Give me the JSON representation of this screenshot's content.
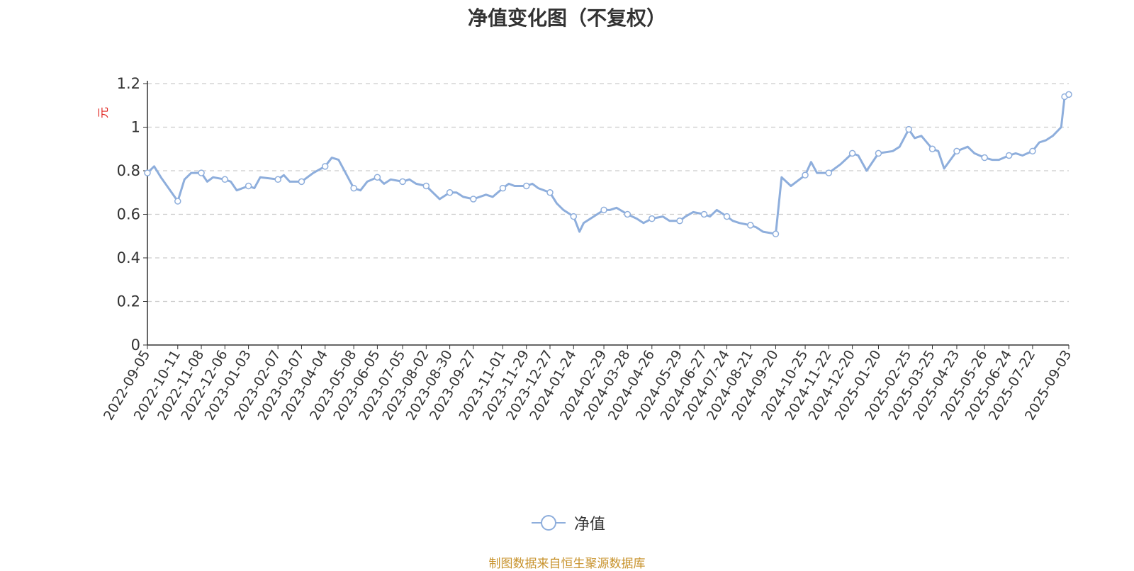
{
  "colors": {
    "series": "#8eaedc",
    "axis": "#333333",
    "grid": "#cccccc",
    "unit": "#e0241f",
    "source": "#c8932d"
  },
  "legend": {
    "label": "净值",
    "icon": "circle-line-icon",
    "position": "bottom-center"
  },
  "source_note": "制图数据来自恒生聚源数据库",
  "chart_data": {
    "type": "line",
    "title": "净值变化图（不复权）",
    "ylabel": "元",
    "xlabel": "",
    "ylim": [
      0,
      1.2
    ],
    "yticks": [
      "0",
      "0.2",
      "0.4",
      "0.6",
      "0.8",
      "1",
      "1.2"
    ],
    "grid": true,
    "x_tick_labels": [
      "2022-09-05",
      "2022-10-11",
      "2022-11-08",
      "2022-12-06",
      "2023-01-03",
      "2023-02-07",
      "2023-03-07",
      "2023-04-04",
      "2023-05-08",
      "2023-06-05",
      "2023-07-05",
      "2023-08-02",
      "2023-08-30",
      "2023-09-27",
      "2023-11-01",
      "2023-11-29",
      "2023-12-27",
      "2024-01-24",
      "2024-02-29",
      "2024-03-28",
      "2024-04-26",
      "2024-05-29",
      "2024-06-27",
      "2024-07-24",
      "2024-08-21",
      "2024-09-20",
      "2024-10-25",
      "2024-11-22",
      "2024-12-20",
      "2025-01-20",
      "2025-02-25",
      "2025-03-25",
      "2025-04-23",
      "2025-05-26",
      "2025-06-24",
      "2025-07-22",
      "2025-09-03"
    ],
    "series": [
      {
        "name": "净值",
        "x": [
          "2022-09-05",
          "2022-09-13",
          "2022-09-21",
          "2022-10-11",
          "2022-10-19",
          "2022-10-27",
          "2022-11-08",
          "2022-11-15",
          "2022-11-22",
          "2022-12-06",
          "2022-12-13",
          "2022-12-20",
          "2023-01-03",
          "2023-01-10",
          "2023-01-17",
          "2023-02-07",
          "2023-02-14",
          "2023-02-21",
          "2023-03-07",
          "2023-03-14",
          "2023-03-21",
          "2023-04-04",
          "2023-04-12",
          "2023-04-20",
          "2023-05-08",
          "2023-05-16",
          "2023-05-24",
          "2023-06-05",
          "2023-06-13",
          "2023-06-21",
          "2023-07-05",
          "2023-07-13",
          "2023-07-21",
          "2023-08-02",
          "2023-08-10",
          "2023-08-18",
          "2023-08-30",
          "2023-09-07",
          "2023-09-15",
          "2023-09-27",
          "2023-10-12",
          "2023-10-20",
          "2023-11-01",
          "2023-11-08",
          "2023-11-15",
          "2023-11-29",
          "2023-12-06",
          "2023-12-13",
          "2023-12-27",
          "2024-01-04",
          "2024-01-12",
          "2024-01-24",
          "2024-01-31",
          "2024-02-05",
          "2024-02-29",
          "2024-03-07",
          "2024-03-15",
          "2024-03-28",
          "2024-04-08",
          "2024-04-16",
          "2024-04-26",
          "2024-05-09",
          "2024-05-17",
          "2024-05-29",
          "2024-06-05",
          "2024-06-14",
          "2024-06-27",
          "2024-07-04",
          "2024-07-12",
          "2024-07-24",
          "2024-07-31",
          "2024-08-08",
          "2024-08-21",
          "2024-08-28",
          "2024-09-05",
          "2024-09-20",
          "2024-09-27",
          "2024-10-08",
          "2024-10-25",
          "2024-11-01",
          "2024-11-08",
          "2024-11-22",
          "2024-11-29",
          "2024-12-06",
          "2024-12-20",
          "2024-12-27",
          "2025-01-06",
          "2025-01-20",
          "2025-02-06",
          "2025-02-14",
          "2025-02-25",
          "2025-03-04",
          "2025-03-12",
          "2025-03-25",
          "2025-04-01",
          "2025-04-08",
          "2025-04-23",
          "2025-05-06",
          "2025-05-14",
          "2025-05-26",
          "2025-06-04",
          "2025-06-12",
          "2025-06-24",
          "2025-07-02",
          "2025-07-10",
          "2025-07-22",
          "2025-07-30",
          "2025-08-07",
          "2025-08-15",
          "2025-08-25",
          "2025-08-29",
          "2025-09-03"
        ],
        "values": [
          0.79,
          0.82,
          0.77,
          0.66,
          0.76,
          0.79,
          0.79,
          0.75,
          0.77,
          0.76,
          0.75,
          0.71,
          0.73,
          0.72,
          0.77,
          0.76,
          0.78,
          0.75,
          0.75,
          0.77,
          0.79,
          0.82,
          0.86,
          0.85,
          0.72,
          0.71,
          0.75,
          0.77,
          0.74,
          0.76,
          0.75,
          0.76,
          0.74,
          0.73,
          0.7,
          0.67,
          0.7,
          0.7,
          0.68,
          0.67,
          0.69,
          0.68,
          0.72,
          0.74,
          0.73,
          0.73,
          0.74,
          0.72,
          0.7,
          0.65,
          0.62,
          0.59,
          0.52,
          0.56,
          0.62,
          0.62,
          0.63,
          0.6,
          0.58,
          0.56,
          0.58,
          0.59,
          0.57,
          0.57,
          0.59,
          0.61,
          0.6,
          0.59,
          0.62,
          0.59,
          0.57,
          0.56,
          0.55,
          0.54,
          0.52,
          0.51,
          0.77,
          0.73,
          0.78,
          0.84,
          0.79,
          0.79,
          0.81,
          0.83,
          0.88,
          0.87,
          0.8,
          0.88,
          0.89,
          0.91,
          0.99,
          0.95,
          0.96,
          0.9,
          0.89,
          0.81,
          0.89,
          0.91,
          0.88,
          0.86,
          0.85,
          0.85,
          0.87,
          0.88,
          0.87,
          0.89,
          0.93,
          0.94,
          0.96,
          1.0,
          1.14,
          1.15
        ],
        "markers": [
          "2022-09-05",
          "2022-10-11",
          "2022-11-08",
          "2022-12-06",
          "2023-01-03",
          "2023-02-07",
          "2023-03-07",
          "2023-04-04",
          "2023-05-08",
          "2023-06-05",
          "2023-07-05",
          "2023-08-02",
          "2023-08-30",
          "2023-09-27",
          "2023-11-01",
          "2023-11-29",
          "2023-12-27",
          "2024-01-24",
          "2024-02-29",
          "2024-03-28",
          "2024-04-26",
          "2024-05-29",
          "2024-06-27",
          "2024-07-24",
          "2024-08-21",
          "2024-09-20",
          "2024-10-25",
          "2024-11-22",
          "2024-12-20",
          "2025-01-20",
          "2025-02-25",
          "2025-03-25",
          "2025-04-23",
          "2025-05-26",
          "2025-06-24",
          "2025-07-22",
          "2025-08-29",
          "2025-09-03"
        ]
      }
    ]
  }
}
